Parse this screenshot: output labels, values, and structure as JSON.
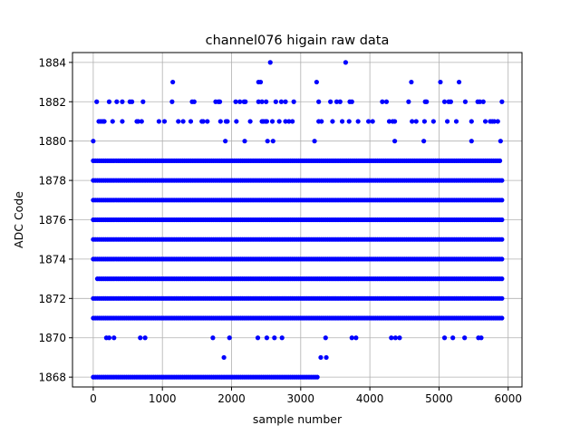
{
  "chart_data": {
    "type": "scatter",
    "title": "channel076 higain raw data",
    "xlabel": "sample number",
    "ylabel": "ADC Code",
    "xlim": [
      -300,
      6200
    ],
    "ylim": [
      1867.5,
      1884.5
    ],
    "xticks": [
      0,
      1000,
      2000,
      3000,
      4000,
      5000,
      6000
    ],
    "yticks": [
      1868,
      1870,
      1872,
      1874,
      1876,
      1878,
      1880,
      1882,
      1884
    ],
    "grid": true,
    "marker_color": "#0000ff",
    "sample_count": 5920,
    "series": [
      {
        "name": "",
        "summary_by_code": [
          {
            "y": 1884,
            "x": [
              2560,
              3650
            ]
          },
          {
            "y": 1883,
            "x": [
              1150,
              2390,
              2420,
              3230,
              4600,
              5020,
              5290
            ]
          },
          {
            "y": 1882,
            "x": [
              50,
              230,
              340,
              420,
              530,
              560,
              720,
              1140,
              1430,
              1460,
              1770,
              1810,
              1830,
              2060,
              2120,
              2180,
              2200,
              2390,
              2440,
              2500,
              2640,
              2720,
              2780,
              2900,
              3260,
              3430,
              3520,
              3570,
              3710,
              3740,
              4180,
              4240,
              4560,
              4800,
              4820,
              5080,
              5140,
              5170,
              5380,
              5560,
              5590,
              5640,
              5910
            ]
          },
          {
            "y": 1881,
            "x": [
              80,
              110,
              140,
              160,
              280,
              420,
              630,
              650,
              700,
              950,
              1030,
              1230,
              1300,
              1410,
              1570,
              1590,
              1650,
              1840,
              1920,
              1940,
              2070,
              2270,
              2440,
              2460,
              2490,
              2510,
              2590,
              2690,
              2780,
              2830,
              2880,
              3260,
              3300,
              3460,
              3600,
              3700,
              3830,
              3980,
              4040,
              4280,
              4330,
              4360,
              4610,
              4670,
              4790,
              4920,
              5120,
              5250,
              5470,
              5670,
              5740,
              5770,
              5800,
              5850
            ]
          },
          {
            "y": 1880,
            "x": [
              0,
              1910,
              2190,
              2520,
              2600,
              3200,
              4360,
              4780,
              5470,
              5890
            ]
          },
          {
            "y": 1879,
            "x": [
              0,
              5900
            ]
          },
          {
            "y": 1878,
            "x": [
              0,
              5920
            ]
          },
          {
            "y": 1877,
            "x": [
              0,
              5920
            ]
          },
          {
            "y": 1876,
            "x": [
              0,
              5920
            ]
          },
          {
            "y": 1875,
            "x": [
              0,
              5920
            ]
          },
          {
            "y": 1874,
            "x": [
              0,
              5920
            ]
          },
          {
            "y": 1873,
            "x": [
              60,
              5920
            ]
          },
          {
            "y": 1872,
            "x": [
              0,
              5920
            ]
          },
          {
            "y": 1871,
            "x": [
              0,
              5910
            ]
          },
          {
            "y": 1870,
            "x": [
              190,
              230,
              300,
              680,
              750,
              1730,
              1970,
              2380,
              2510,
              2620,
              2730,
              3360,
              3740,
              3800,
              4310,
              4370,
              4430,
              5080,
              5200,
              5370,
              5570,
              5610
            ]
          },
          {
            "y": 1869,
            "x": [
              1890,
              3290,
              3370
            ]
          },
          {
            "y": 1868,
            "x": [
              0,
              3240
            ]
          }
        ]
      }
    ]
  }
}
